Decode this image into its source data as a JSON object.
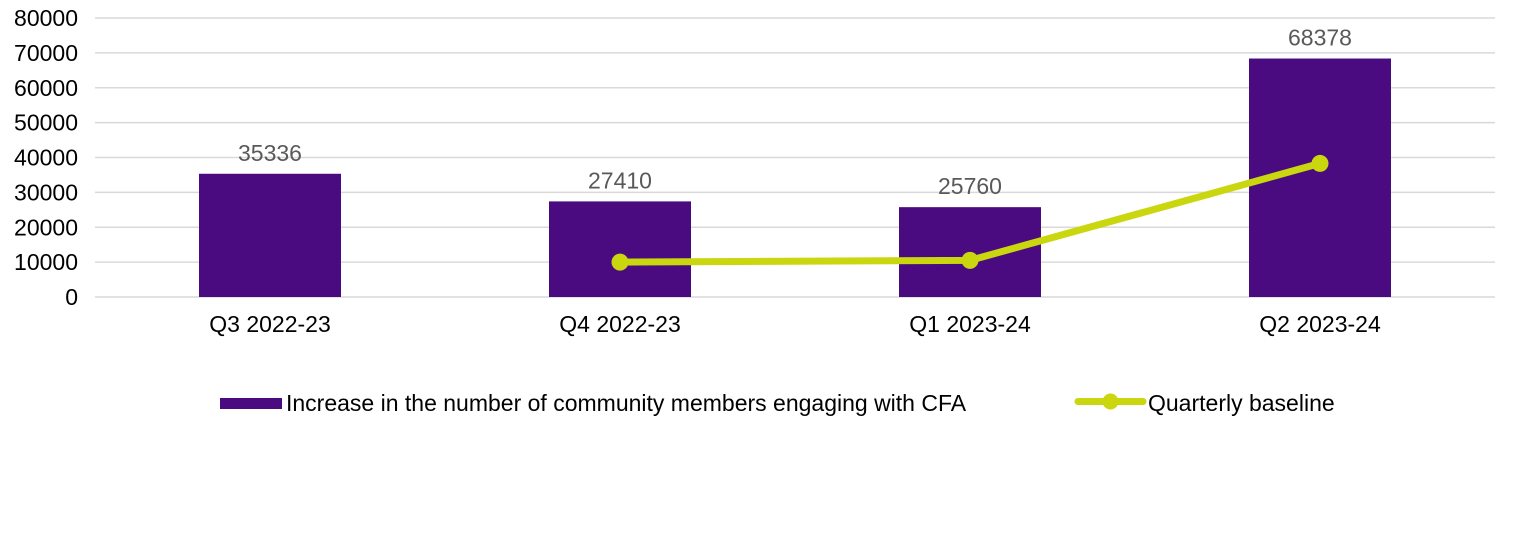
{
  "chart_data": {
    "type": "combo",
    "title": "",
    "xlabel": "",
    "ylabel": "",
    "categories": [
      "Q3 2022-23",
      "Q4 2022-23",
      "Q1 2023-24",
      "Q2 2023-24"
    ],
    "series": [
      {
        "name": "Increase in the number of community members engaging with CFA",
        "type": "bar",
        "color": "#4A0B80",
        "values": [
          35336,
          27410,
          25760,
          68378
        ],
        "data_labels_shown": true
      },
      {
        "name": "Quarterly baseline",
        "type": "line",
        "color": "#CAD60E",
        "values": [
          null,
          10000,
          10500,
          38300
        ]
      }
    ],
    "ylim": [
      0,
      80000
    ],
    "y_ticks": [
      0,
      10000,
      20000,
      30000,
      40000,
      50000,
      60000,
      70000,
      80000
    ],
    "grid": "horizontal",
    "legend_position": "bottom",
    "colors": {
      "grid": "#D9D9D9",
      "data_label": "#595959",
      "axis_text": "#000000",
      "background": "#FFFFFF"
    }
  }
}
